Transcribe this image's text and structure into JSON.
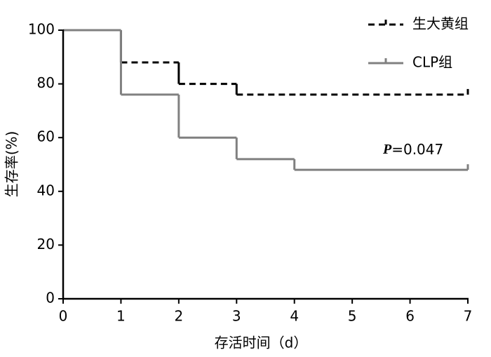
{
  "chart_data": {
    "type": "step",
    "xlabel": "存活时间（d）",
    "ylabel": "生存率(%)",
    "annotation_italic": "P",
    "annotation": "=0.047",
    "xlim": [
      0,
      7
    ],
    "xticks": [
      0,
      1,
      2,
      3,
      4,
      5,
      6,
      7
    ],
    "ylim": [
      0,
      100
    ],
    "yticks": [
      0,
      20,
      40,
      60,
      80,
      100
    ],
    "series": [
      {
        "name": "生大黄组",
        "color": "#000000",
        "dash": true,
        "x": [
          0,
          1,
          2,
          3,
          7
        ],
        "values": [
          100,
          88,
          80,
          76,
          76
        ]
      },
      {
        "name": "CLP组",
        "color": "#808080",
        "dash": false,
        "x": [
          0,
          1,
          2,
          3,
          4,
          7
        ],
        "values": [
          100,
          76,
          60,
          52,
          48,
          48
        ]
      }
    ]
  }
}
